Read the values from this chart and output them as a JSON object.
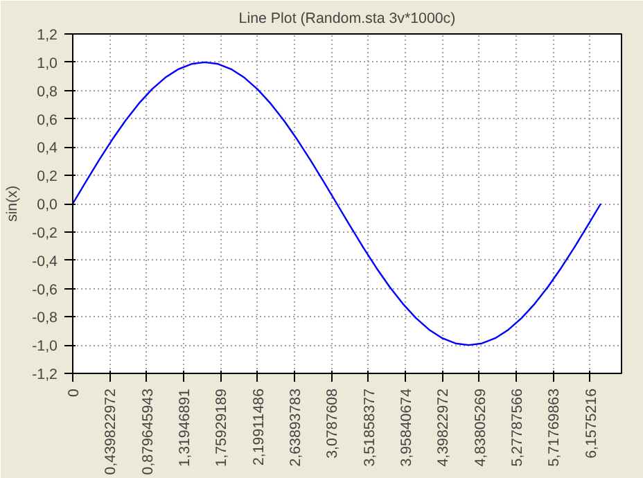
{
  "chart_data": {
    "type": "line",
    "title": "Line Plot (Random.sta 3v*1000c)",
    "ylabel": "sin(x)",
    "x": [
      0,
      0.157,
      0.314,
      0.471,
      0.628,
      0.785,
      0.942,
      1.1,
      1.257,
      1.414,
      1.571,
      1.728,
      1.885,
      2.042,
      2.199,
      2.356,
      2.513,
      2.67,
      2.827,
      2.985,
      3.142,
      3.299,
      3.456,
      3.613,
      3.77,
      3.927,
      4.084,
      4.241,
      4.398,
      4.555,
      4.712,
      4.869,
      5.027,
      5.184,
      5.341,
      5.498,
      5.655,
      5.812,
      5.969,
      6.126,
      6.283
    ],
    "series": [
      {
        "color": "#0000ff",
        "values": [
          0,
          0.156,
          0.309,
          0.454,
          0.588,
          0.707,
          0.809,
          0.891,
          0.951,
          0.988,
          1,
          0.988,
          0.951,
          0.891,
          0.809,
          0.707,
          0.588,
          0.454,
          0.309,
          0.156,
          0,
          -0.156,
          -0.309,
          -0.454,
          -0.588,
          -0.707,
          -0.809,
          -0.891,
          -0.951,
          -0.988,
          -1,
          -0.988,
          -0.951,
          -0.891,
          -0.809,
          -0.707,
          -0.588,
          -0.454,
          -0.309,
          -0.156,
          0
        ]
      }
    ],
    "xlim": [
      0,
      6.53
    ],
    "xticks": [
      0,
      {
        "value": 0.439822972,
        "label": "0,439822972"
      },
      {
        "value": 0.879645943,
        "label": "0,879645943"
      },
      {
        "value": 1.31946891,
        "label": "1,31946891"
      },
      {
        "value": 1.75929189,
        "label": "1,75929189"
      },
      {
        "value": 2.19911486,
        "label": "2,19911486"
      },
      {
        "value": 2.63893783,
        "label": "2,63893783"
      },
      {
        "value": 3.0787608,
        "label": "3,0787608"
      },
      {
        "value": 3.51858377,
        "label": "3,51858377"
      },
      {
        "value": 3.95840674,
        "label": "3,95840674"
      },
      {
        "value": 4.39822972,
        "label": "4,39822972"
      },
      {
        "value": 4.83805269,
        "label": "4,83805269"
      },
      {
        "value": 5.27787566,
        "label": "5,27787566"
      },
      {
        "value": 5.71769863,
        "label": "5,71769863"
      },
      {
        "value": 6.1575216,
        "label": "6,1575216"
      }
    ],
    "ylim": [
      -1.2,
      1.2
    ],
    "yticks": [
      {
        "value": -1.2,
        "label": "-1,2"
      },
      {
        "value": -1.0,
        "label": "-1,0"
      },
      {
        "value": -0.8,
        "label": "-0,8"
      },
      {
        "value": -0.6,
        "label": "-0,6"
      },
      {
        "value": -0.4,
        "label": "-0,4"
      },
      {
        "value": -0.2,
        "label": "-0,2"
      },
      {
        "value": 0,
        "label": "0,0"
      },
      {
        "value": 0.2,
        "label": "0,2"
      },
      {
        "value": 0.4,
        "label": "0,4"
      },
      {
        "value": 0.6,
        "label": "0,6"
      },
      {
        "value": 0.8,
        "label": "0,8"
      },
      {
        "value": 1.0,
        "label": "1,0"
      },
      {
        "value": 1.2,
        "label": "1,2"
      }
    ],
    "grid": true,
    "line_style": "solid"
  }
}
